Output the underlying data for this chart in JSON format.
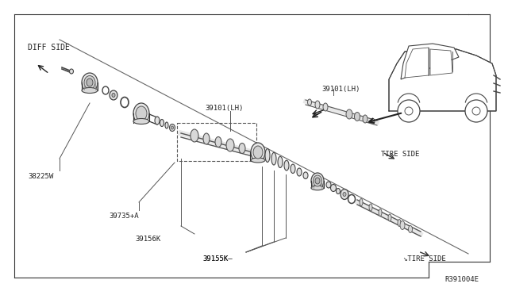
{
  "bg_color": "#ffffff",
  "line_color": "#333333",
  "text_color": "#222222",
  "part_number_code": "R391004E",
  "labels": {
    "diff_side": "DIFF SIDE",
    "tire_side_top": "TIRE SIDE",
    "tire_side_bottom": "↘TIRE SIDE",
    "p38225w": "38225W",
    "p39735a": "39735+A",
    "p39156k": "39156K",
    "p39101lh_left": "39101(LH)",
    "p39101lh_right": "39101(LH)",
    "p39155k": "39155K"
  },
  "fig_width": 6.4,
  "fig_height": 3.72,
  "dpi": 100
}
